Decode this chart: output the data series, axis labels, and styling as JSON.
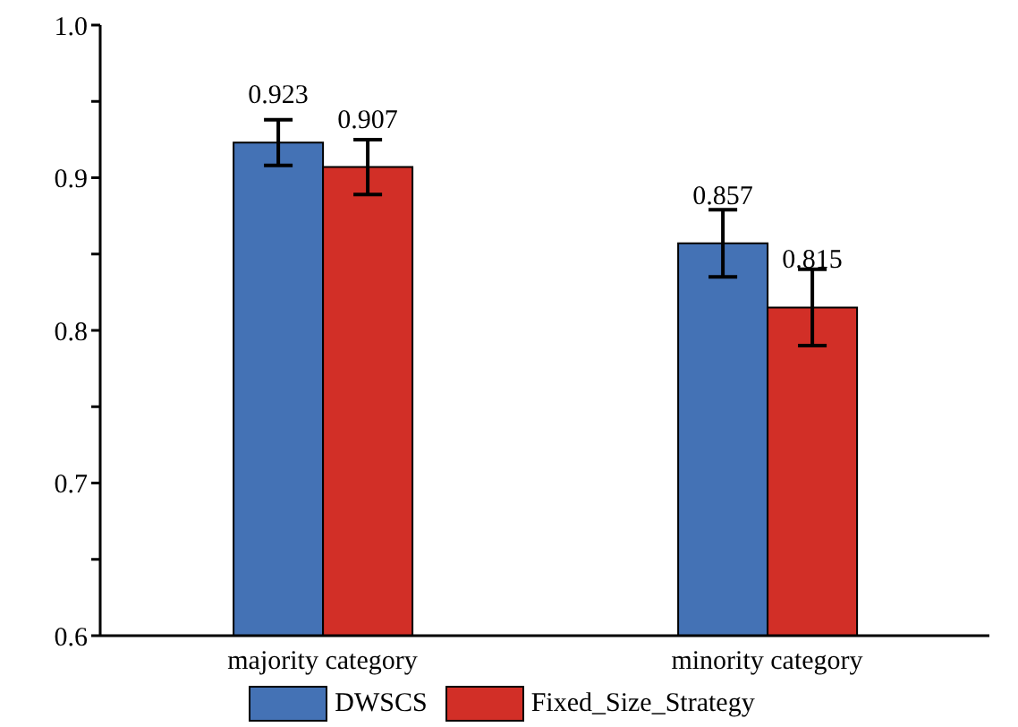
{
  "chart_data": {
    "type": "bar",
    "categories": [
      "majority category",
      "minority category"
    ],
    "series": [
      {
        "name": "DWSCS",
        "color": "#4472b5",
        "values": [
          0.923,
          0.857
        ],
        "errors": [
          0.015,
          0.022
        ]
      },
      {
        "name": "Fixed_Size_Strategy",
        "color": "#d22f27",
        "values": [
          0.907,
          0.815
        ],
        "errors": [
          0.018,
          0.025
        ]
      }
    ],
    "ylim": [
      0.6,
      1.0
    ],
    "yticks": [
      0.6,
      {
        "value": 0.65,
        "label": null
      },
      0.7,
      {
        "value": 0.75,
        "label": null
      },
      0.8,
      {
        "value": 0.85,
        "label": null
      },
      0.9,
      {
        "value": 0.95,
        "label": null
      },
      {
        "value": 1.0,
        "label": "1.0"
      }
    ],
    "data_labels": true,
    "grid": false,
    "legend": "bottom"
  }
}
